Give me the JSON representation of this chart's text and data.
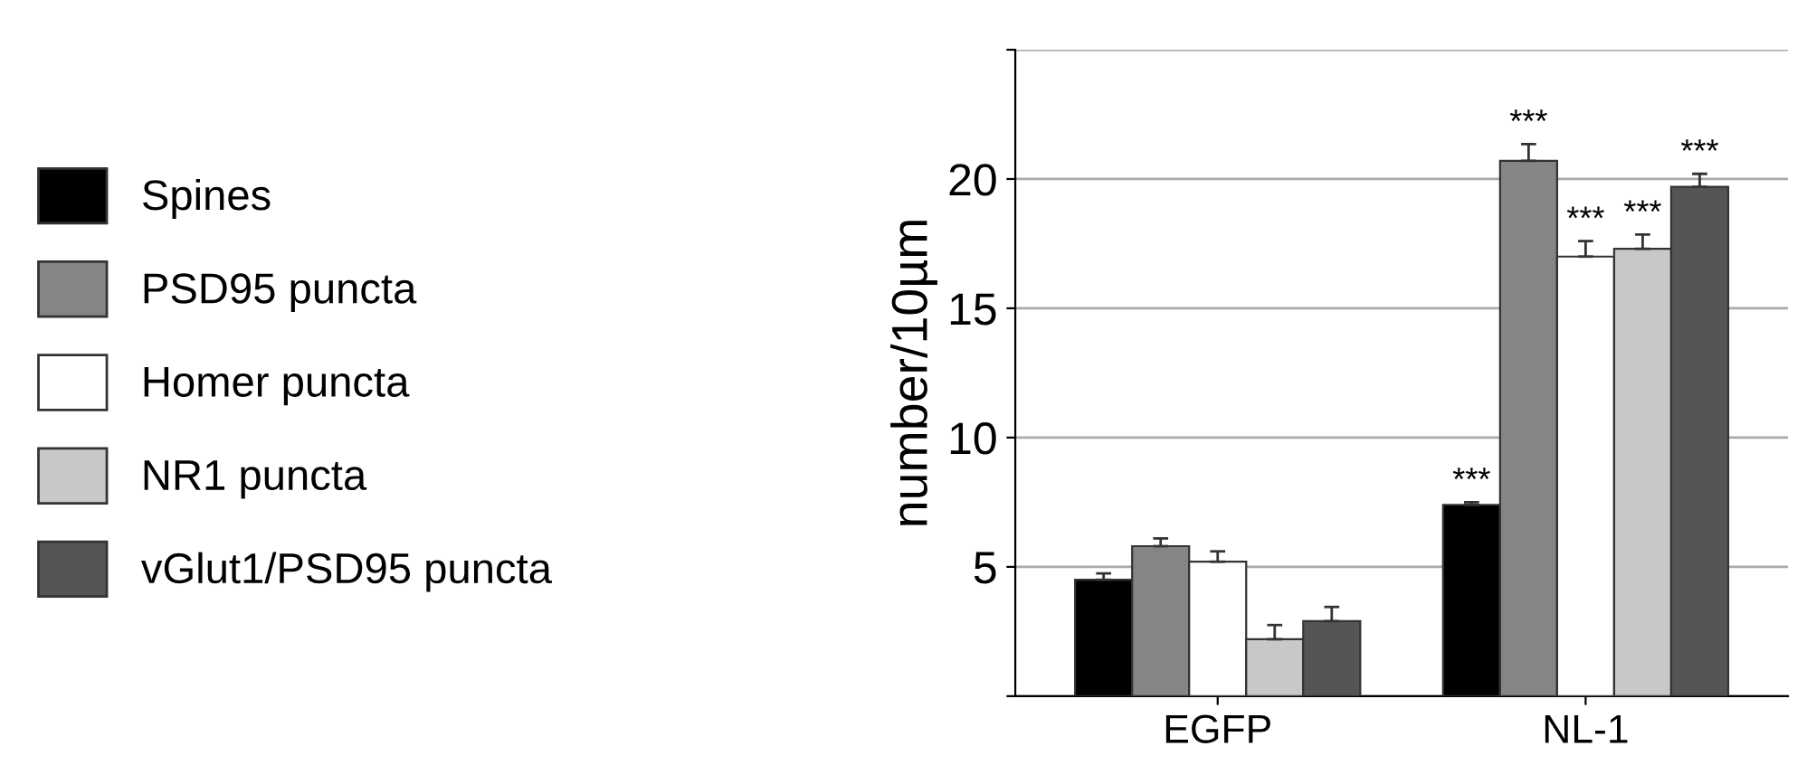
{
  "chart_data": {
    "type": "bar",
    "ylabel": "number/10µm",
    "categories": [
      "EGFP",
      "NL-1"
    ],
    "series": [
      {
        "name": "Spines",
        "color": "#000000",
        "values": [
          4.5,
          7.4
        ],
        "errors": [
          0.25,
          0.1
        ],
        "value_labels": [
          null,
          "***"
        ]
      },
      {
        "name": "PSD95 puncta",
        "color": "#858585",
        "values": [
          5.8,
          20.7
        ],
        "errors": [
          0.3,
          0.65
        ],
        "value_labels": [
          null,
          "***"
        ]
      },
      {
        "name": "Homer puncta",
        "color": "#ffffff",
        "values": [
          5.2,
          17.0
        ],
        "errors": [
          0.4,
          0.6
        ],
        "value_labels": [
          null,
          "***"
        ]
      },
      {
        "name": "NR1 puncta",
        "color": "#c8c8c8",
        "values": [
          2.2,
          17.3
        ],
        "errors": [
          0.55,
          0.55
        ],
        "value_labels": [
          null,
          "***"
        ]
      },
      {
        "name": "vGlut1/PSD95 puncta",
        "color": "#555555",
        "values": [
          2.9,
          19.7
        ],
        "errors": [
          0.55,
          0.5
        ],
        "value_labels": [
          null,
          "***"
        ]
      }
    ],
    "ylim": [
      0,
      25
    ],
    "yticks": [
      {
        "value": 0,
        "label": null
      },
      5,
      10,
      15,
      20,
      {
        "value": 25,
        "label": null
      }
    ],
    "grid": "y",
    "legend": "left"
  }
}
